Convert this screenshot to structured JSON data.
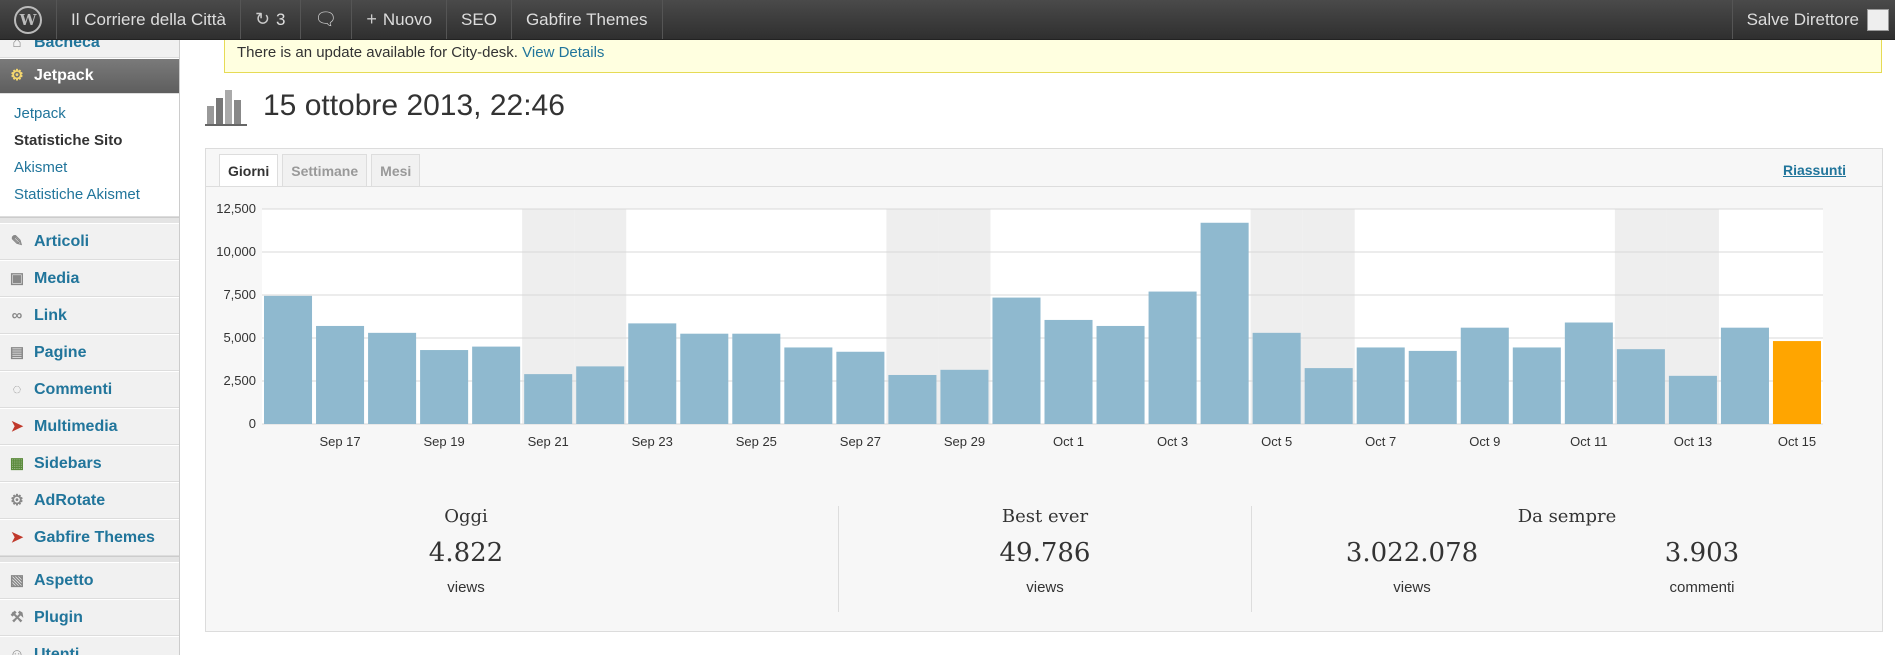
{
  "adminbar": {
    "site_name": "Il Corriere della Città",
    "updates_count": "3",
    "new_label": "Nuovo",
    "seo_label": "SEO",
    "gabfire_label": "Gabfire Themes",
    "greeting": "Salve Direttore"
  },
  "sidebar": {
    "partial_top": "Bacheca",
    "active": "Jetpack",
    "submenu": [
      "Jetpack",
      "Statistiche Sito",
      "Akismet",
      "Statistiche Akismet"
    ],
    "items": [
      "Articoli",
      "Media",
      "Link",
      "Pagine",
      "Commenti",
      "Multimedia",
      "Sidebars",
      "AdRotate",
      "Gabfire Themes"
    ],
    "items2": [
      "Aspetto",
      "Plugin",
      "Utenti"
    ]
  },
  "notice": {
    "text": "There is an update available for City-desk.",
    "link": "View Details"
  },
  "page_title": "15 ottobre 2013, 22:46",
  "tabs": [
    "Giorni",
    "Settimane",
    "Mesi"
  ],
  "summary_link": "Riassunti",
  "chart_data": {
    "type": "bar",
    "categories": [
      "Sep 16",
      "Sep 17",
      "Sep 18",
      "Sep 19",
      "Sep 20",
      "Sep 21",
      "Sep 22",
      "Sep 23",
      "Sep 24",
      "Sep 25",
      "Sep 26",
      "Sep 27",
      "Sep 28",
      "Sep 29",
      "Sep 30",
      "Oct 1",
      "Oct 2",
      "Oct 3",
      "Oct 4",
      "Oct 5",
      "Oct 6",
      "Oct 7",
      "Oct 8",
      "Oct 9",
      "Oct 10",
      "Oct 11",
      "Oct 12",
      "Oct 13",
      "Oct 14",
      "Oct 15"
    ],
    "x_tick_labels": [
      "Sep 17",
      "Sep 19",
      "Sep 21",
      "Sep 23",
      "Sep 25",
      "Sep 27",
      "Sep 29",
      "Oct 1",
      "Oct 3",
      "Oct 5",
      "Oct 7",
      "Oct 9",
      "Oct 11",
      "Oct 13",
      "Oct 15"
    ],
    "values": [
      7450,
      5700,
      5300,
      4300,
      4500,
      2900,
      3350,
      5850,
      5250,
      5250,
      4450,
      4200,
      2850,
      3150,
      7350,
      6050,
      5700,
      7700,
      11700,
      5300,
      3250,
      4450,
      4250,
      5600,
      4450,
      5900,
      4350,
      2800,
      5600,
      4822
    ],
    "weekend_categories": [
      "Sep 21",
      "Sep 22",
      "Sep 28",
      "Sep 29",
      "Oct 5",
      "Oct 6",
      "Oct 12",
      "Oct 13"
    ],
    "y_ticks": [
      "0",
      "2,500",
      "5,000",
      "7,500",
      "10,000",
      "12,500"
    ],
    "ylim": [
      0,
      12500
    ],
    "grid": true,
    "colors": {
      "bar": "#8fb9cf",
      "highlight": "#ffa500",
      "weekend": "#eeeeee"
    }
  },
  "stats": {
    "today": {
      "label": "Oggi",
      "value": "4.822",
      "unit": "views"
    },
    "best": {
      "label": "Best ever",
      "value": "49.786",
      "unit": "views"
    },
    "all_time": {
      "label": "Da sempre",
      "views": "3.022.078",
      "views_unit": "views",
      "comments": "3.903",
      "comments_unit": "commenti"
    }
  }
}
